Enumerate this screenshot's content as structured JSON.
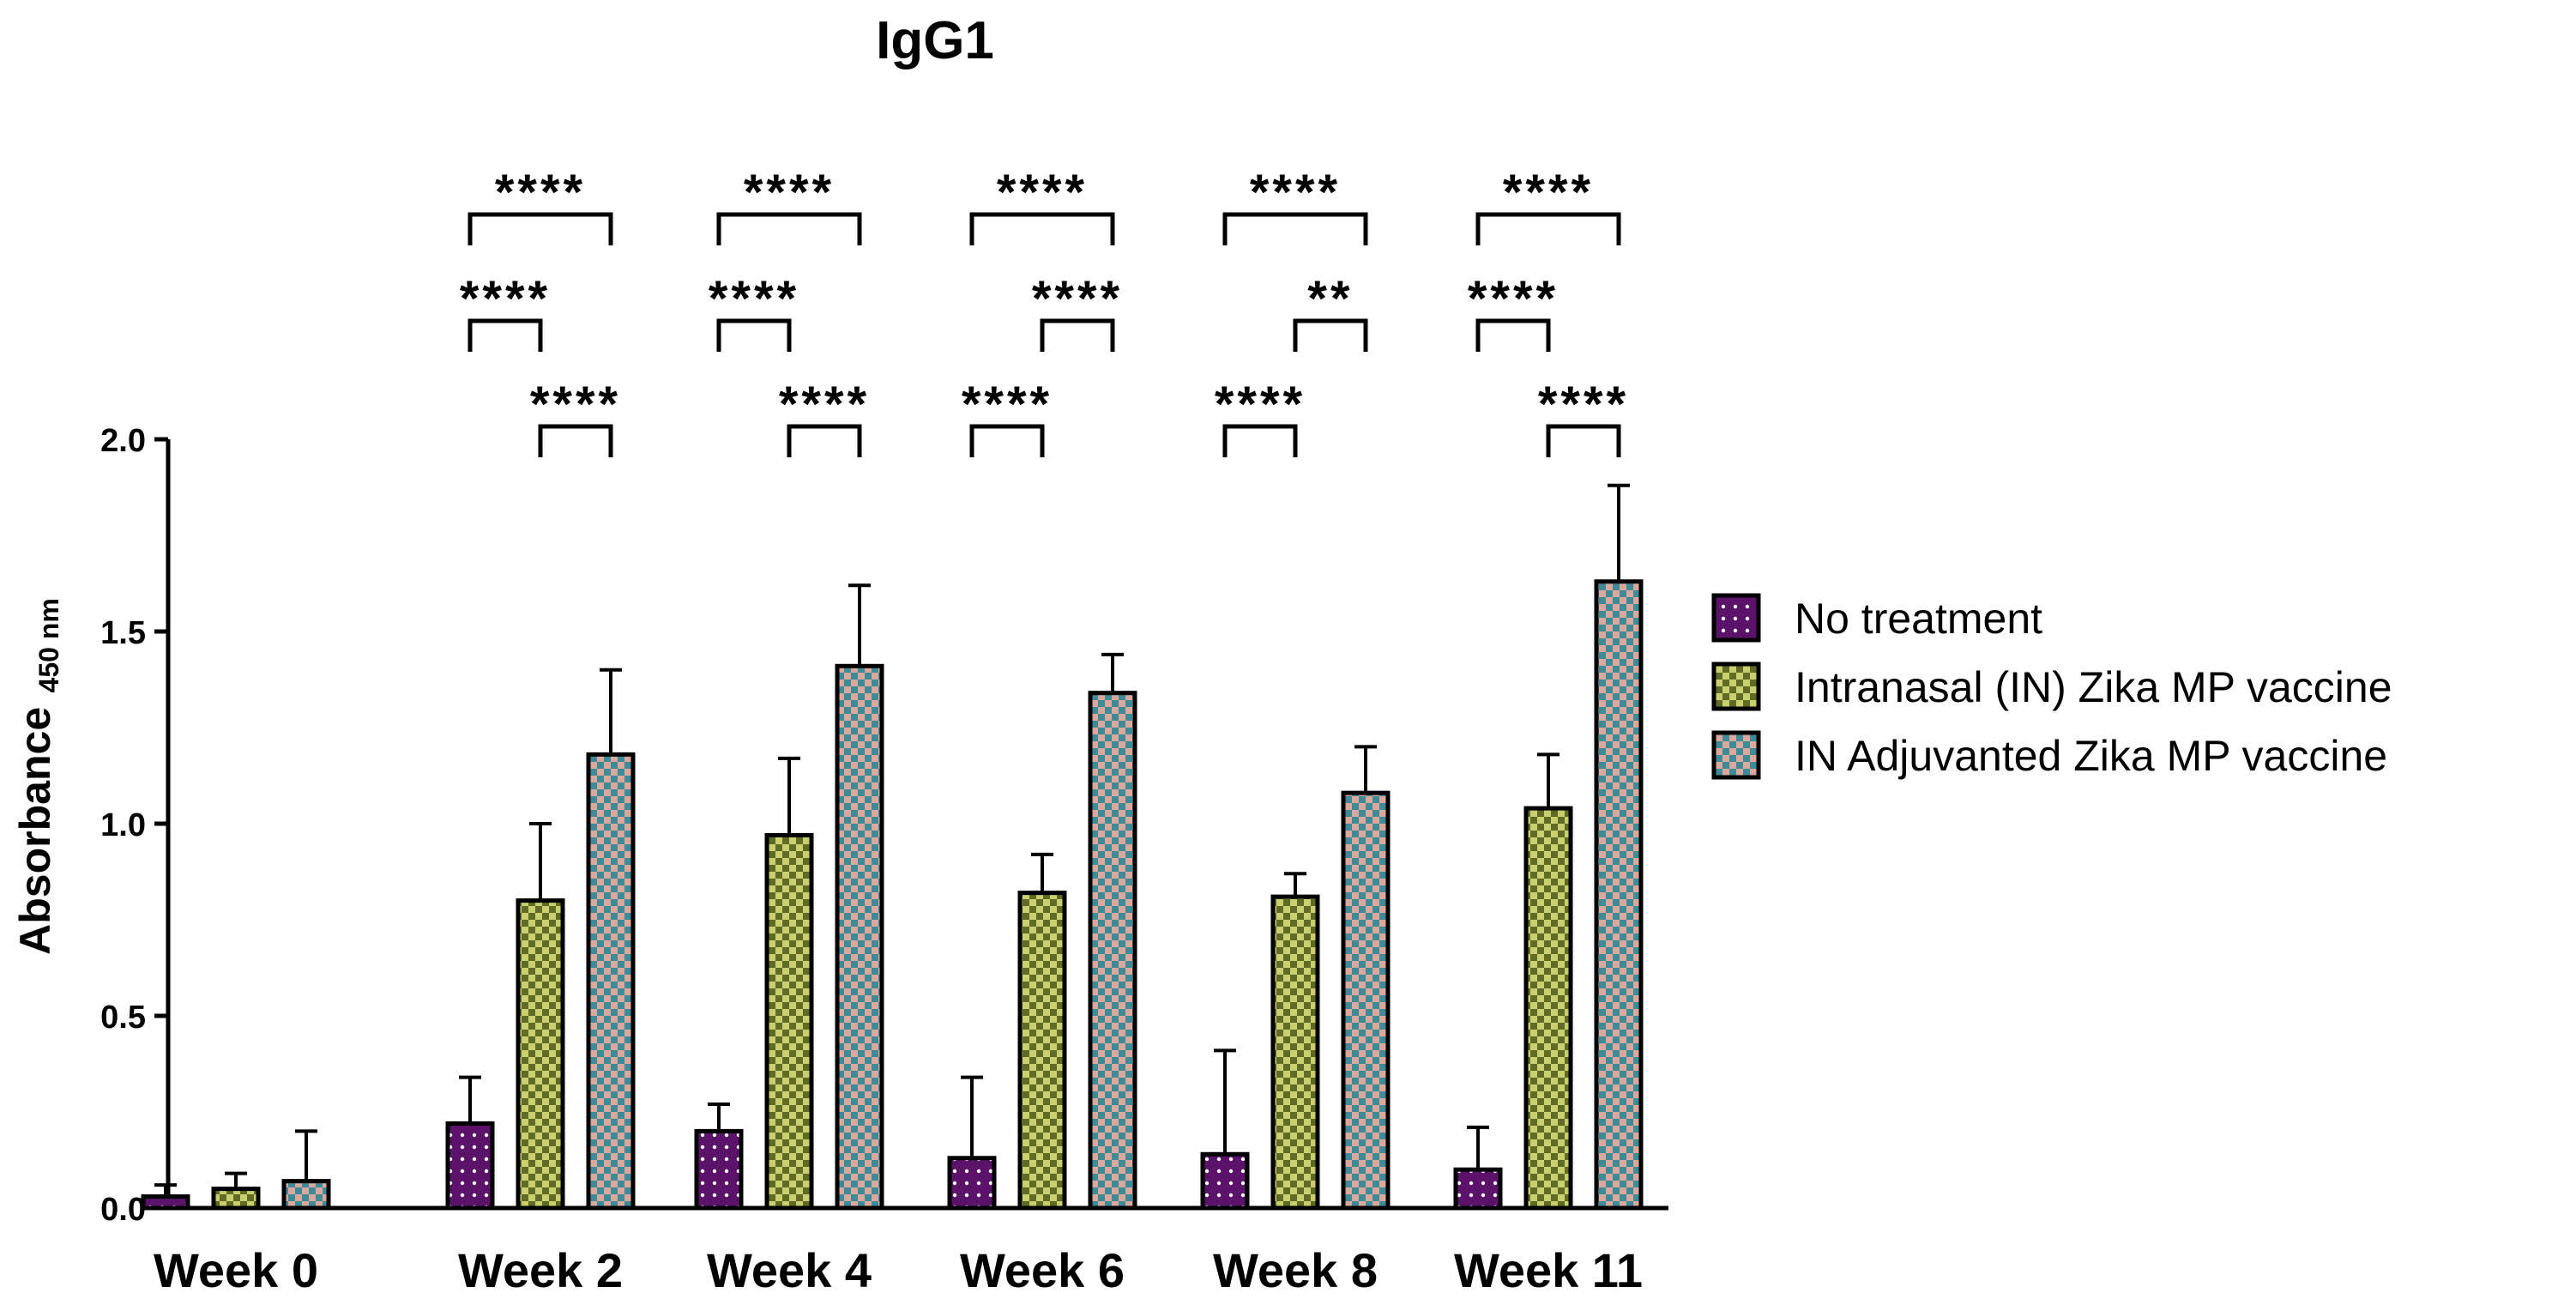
{
  "chart_data": {
    "type": "bar",
    "title": "IgG1",
    "xlabel": "",
    "ylabel": "Absorbance",
    "ylabel_subscript": "450 nm",
    "ylim": [
      0,
      2.0
    ],
    "yticks": [
      "0.0",
      "0.5",
      "1.0",
      "1.5",
      "2.0"
    ],
    "ytick_values": [
      0,
      0.5,
      1.0,
      1.5,
      2.0
    ],
    "categories": [
      "Week 0",
      "Week 2",
      "Week 4",
      "Week 6",
      "Week 8",
      "Week 11"
    ],
    "series": [
      {
        "name": "No treatment",
        "color": "#5a1368",
        "pattern": "dots",
        "values": [
          0.03,
          0.22,
          0.2,
          0.13,
          0.14,
          0.1
        ],
        "errors": [
          0.03,
          0.12,
          0.07,
          0.21,
          0.27,
          0.11
        ]
      },
      {
        "name": "Intranasal (IN) Zika MP vaccine",
        "color": "#9aa63a",
        "pattern": "checker-green",
        "values": [
          0.05,
          0.8,
          0.97,
          0.82,
          0.81,
          1.04
        ],
        "errors": [
          0.04,
          0.2,
          0.2,
          0.1,
          0.06,
          0.14
        ]
      },
      {
        "name": "IN Adjuvanted Zika MP vaccine",
        "color": "#5e8c9a",
        "pattern": "checker-teal",
        "values": [
          0.07,
          1.18,
          1.41,
          1.34,
          1.08,
          1.63
        ],
        "errors": [
          0.13,
          0.22,
          0.21,
          0.1,
          0.12,
          0.25
        ]
      }
    ],
    "significance": [
      {
        "category": "Week 2",
        "from": 0,
        "to": 2,
        "level": 1,
        "label": "****"
      },
      {
        "category": "Week 2",
        "from": 0,
        "to": 1,
        "level": 2,
        "label": "****"
      },
      {
        "category": "Week 2",
        "from": 1,
        "to": 2,
        "level": 3,
        "label": "****"
      },
      {
        "category": "Week 4",
        "from": 0,
        "to": 2,
        "level": 1,
        "label": "****"
      },
      {
        "category": "Week 4",
        "from": 0,
        "to": 1,
        "level": 2,
        "label": "****"
      },
      {
        "category": "Week 4",
        "from": 1,
        "to": 2,
        "level": 3,
        "label": "****"
      },
      {
        "category": "Week 6",
        "from": 0,
        "to": 2,
        "level": 1,
        "label": "****"
      },
      {
        "category": "Week 6",
        "from": 1,
        "to": 2,
        "level": 2,
        "label": "****"
      },
      {
        "category": "Week 6",
        "from": 0,
        "to": 1,
        "level": 3,
        "label": "****"
      },
      {
        "category": "Week 8",
        "from": 0,
        "to": 2,
        "level": 1,
        "label": "****"
      },
      {
        "category": "Week 8",
        "from": 1,
        "to": 2,
        "level": 2,
        "label": "**"
      },
      {
        "category": "Week 8",
        "from": 0,
        "to": 1,
        "level": 3,
        "label": "****"
      },
      {
        "category": "Week 11",
        "from": 0,
        "to": 2,
        "level": 1,
        "label": "****"
      },
      {
        "category": "Week 11",
        "from": 0,
        "to": 1,
        "level": 2,
        "label": "****"
      },
      {
        "category": "Week 11",
        "from": 1,
        "to": 2,
        "level": 3,
        "label": "****"
      }
    ],
    "legend_position": "right"
  }
}
